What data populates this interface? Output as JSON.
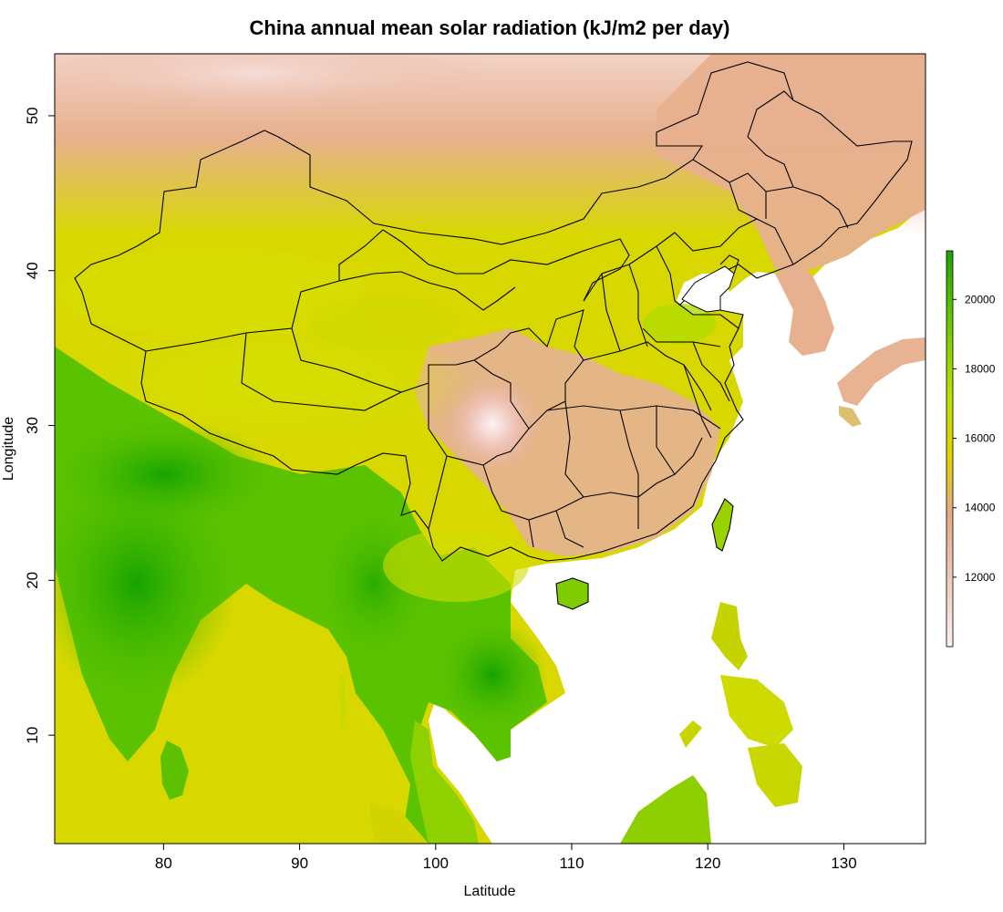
{
  "title": "China annual mean solar radiation (kJ/m2 per day)",
  "x_axis": {
    "label": "Latitude",
    "ticks": [
      "80",
      "90",
      "100",
      "110",
      "120",
      "130"
    ],
    "tick_values": [
      80,
      90,
      100,
      110,
      120,
      130
    ],
    "range": [
      72,
      136
    ]
  },
  "y_axis": {
    "label": "Longitude",
    "ticks": [
      "10",
      "20",
      "30",
      "40",
      "50"
    ],
    "tick_values": [
      10,
      20,
      30,
      40,
      50
    ],
    "range": [
      3,
      54
    ]
  },
  "legend": {
    "placement": "right",
    "ticks": [
      "12000",
      "14000",
      "16000",
      "18000",
      "20000"
    ],
    "tick_values": [
      12000,
      14000,
      16000,
      18000,
      20000
    ],
    "range": [
      10000,
      21400
    ],
    "colors": [
      "#fbf0f0",
      "#f3cdbd",
      "#e7a883",
      "#e6d400",
      "#bbe000",
      "#6ec900",
      "#16a700"
    ]
  },
  "layers": {
    "raster": "solar-radiation-raster",
    "boundaries": "china-province-boundaries"
  }
}
